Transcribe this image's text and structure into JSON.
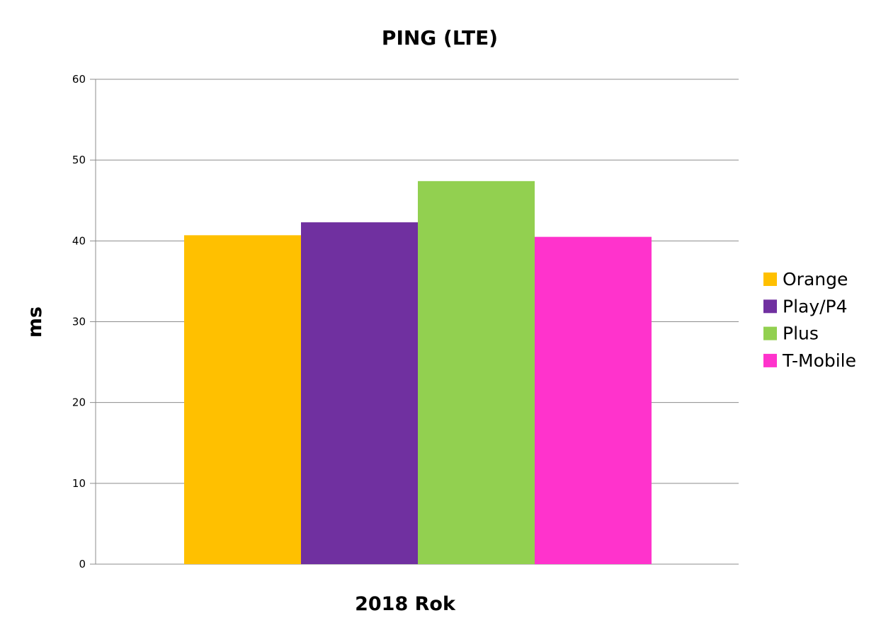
{
  "chart_data": {
    "type": "bar",
    "title": "PING (LTE)",
    "xlabel": "2018 Rok",
    "ylabel": "ms",
    "categories": [
      "2018 Rok"
    ],
    "series": [
      {
        "name": "Orange",
        "values": [
          40.7
        ],
        "color": "#ffc000"
      },
      {
        "name": "Play/P4",
        "values": [
          42.3
        ],
        "color": "#7030a0"
      },
      {
        "name": "Plus",
        "values": [
          47.4
        ],
        "color": "#92d050"
      },
      {
        "name": "T-Mobile",
        "values": [
          40.5
        ],
        "color": "#ff33cc"
      }
    ],
    "ylim": [
      0,
      60
    ],
    "yticks": [
      0,
      10,
      20,
      30,
      40,
      50,
      60
    ],
    "grid": true,
    "legend": "right"
  }
}
